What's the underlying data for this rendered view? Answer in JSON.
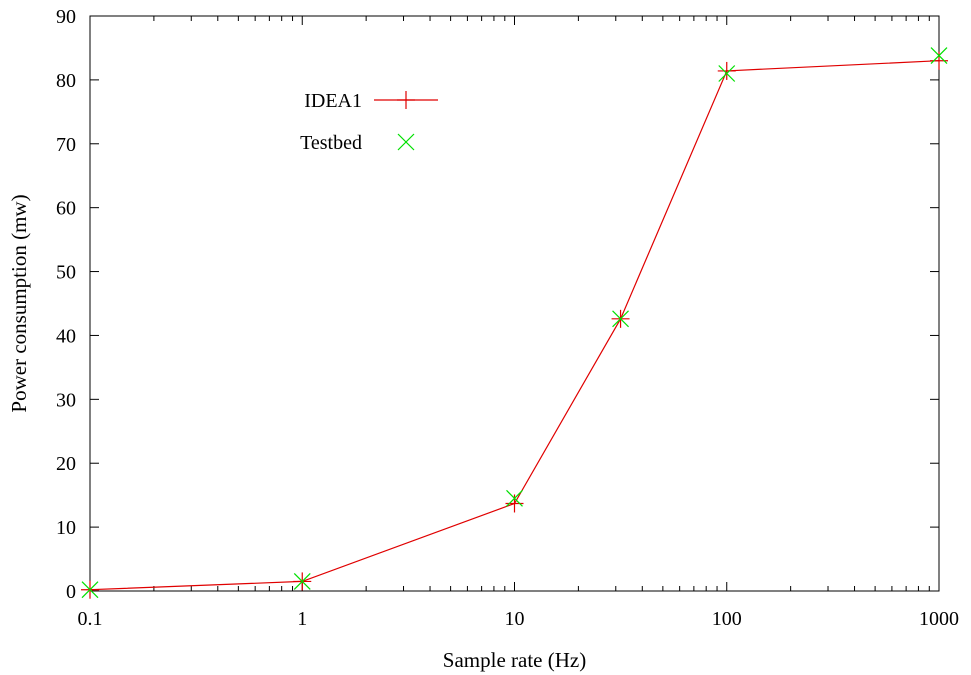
{
  "chart_data": {
    "type": "line",
    "xlabel": "Sample rate (Hz)",
    "ylabel": "Power consumption (mw)",
    "x_scale": "log",
    "xlim": [
      0.1,
      1000
    ],
    "ylim": [
      0,
      90
    ],
    "x_ticks": [
      0.1,
      1,
      10,
      100,
      1000
    ],
    "x_tick_labels": [
      "0.1",
      "1",
      "10",
      "100",
      "1000"
    ],
    "y_ticks": [
      0,
      10,
      20,
      30,
      40,
      50,
      60,
      70,
      80,
      90
    ],
    "y_tick_labels": [
      "0",
      "10",
      "20",
      "30",
      "40",
      "50",
      "60",
      "70",
      "80",
      "90"
    ],
    "grid": false,
    "legend_position": "upper-left inside plot",
    "series": [
      {
        "name": "IDEA1",
        "style": "line+plus",
        "color": "#e00000",
        "points": [
          {
            "x": 0.1,
            "y": 0.2
          },
          {
            "x": 1,
            "y": 1.5
          },
          {
            "x": 10,
            "y": 13.7
          },
          {
            "x": 31.6,
            "y": 42.6
          },
          {
            "x": 100,
            "y": 81.4
          },
          {
            "x": 1000,
            "y": 83.0
          }
        ]
      },
      {
        "name": "Testbed",
        "style": "cross",
        "color": "#00e000",
        "points": [
          {
            "x": 0.1,
            "y": 0.2
          },
          {
            "x": 1,
            "y": 1.5
          },
          {
            "x": 10,
            "y": 14.5
          },
          {
            "x": 31.6,
            "y": 42.6
          },
          {
            "x": 100,
            "y": 81.0
          },
          {
            "x": 1000,
            "y": 83.8
          }
        ]
      }
    ]
  }
}
